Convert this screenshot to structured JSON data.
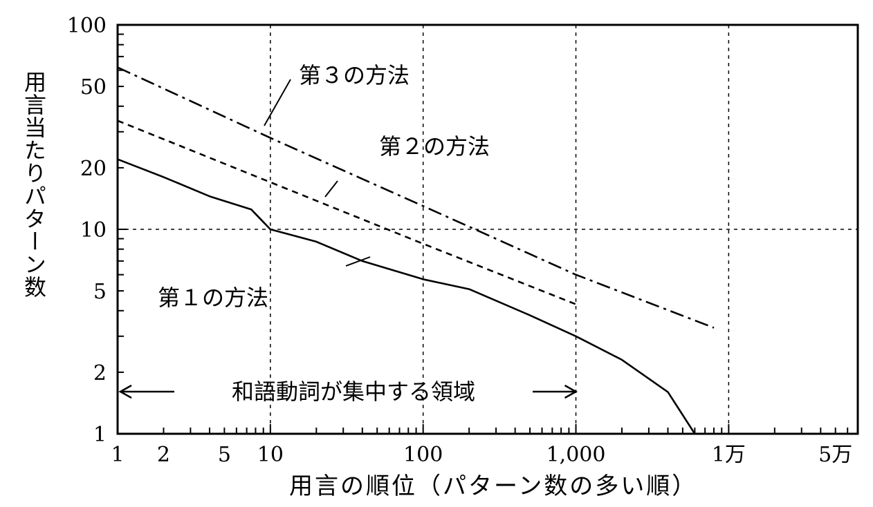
{
  "chart_data": {
    "type": "line",
    "xlabel": "用言の順位（パターン数の多い順）",
    "ylabel": "用言当たりパターン数",
    "x_scale": "log",
    "y_scale": "log",
    "xlim": [
      1,
      70000
    ],
    "ylim": [
      1,
      100
    ],
    "x_ticks": [
      {
        "value": 1,
        "label": "1"
      },
      {
        "value": 2,
        "label": "2"
      },
      {
        "value": 5,
        "label": "5"
      },
      {
        "value": 10,
        "label": "10"
      },
      {
        "value": 100,
        "label": "100"
      },
      {
        "value": 1000,
        "label": "1,000"
      },
      {
        "value": 10000,
        "label": "1万"
      },
      {
        "value": 50000,
        "label": "5万"
      }
    ],
    "y_ticks": [
      {
        "value": 1,
        "label": "1"
      },
      {
        "value": 2,
        "label": "2"
      },
      {
        "value": 5,
        "label": "5"
      },
      {
        "value": 10,
        "label": "10"
      },
      {
        "value": 20,
        "label": "20"
      },
      {
        "value": 50,
        "label": "50"
      },
      {
        "value": 100,
        "label": "100"
      }
    ],
    "x_grid": [
      10,
      100,
      1000,
      10000
    ],
    "y_grid": [
      10
    ],
    "series": [
      {
        "name": "第１の方法",
        "style": "solid",
        "x": [
          1,
          2,
          4,
          7.5,
          10,
          20,
          40,
          100,
          200,
          500,
          1000,
          2000,
          4000,
          6000
        ],
        "y": [
          22,
          18,
          14.5,
          12.5,
          10,
          8.7,
          7,
          5.7,
          5.1,
          3.8,
          3,
          2.3,
          1.6,
          1
        ]
      },
      {
        "name": "第２の方法",
        "style": "dashed",
        "x": [
          1,
          10,
          100,
          1000
        ],
        "y": [
          34,
          17,
          8.5,
          4.3
        ]
      },
      {
        "name": "第３の方法",
        "style": "dashdot",
        "x": [
          1,
          10,
          100,
          1000,
          8000
        ],
        "y": [
          62,
          28,
          13,
          6,
          3.3
        ]
      }
    ],
    "annotations": {
      "range_label": "和語動詞が集中する領域",
      "range_from": 1,
      "range_to": 1000
    }
  }
}
